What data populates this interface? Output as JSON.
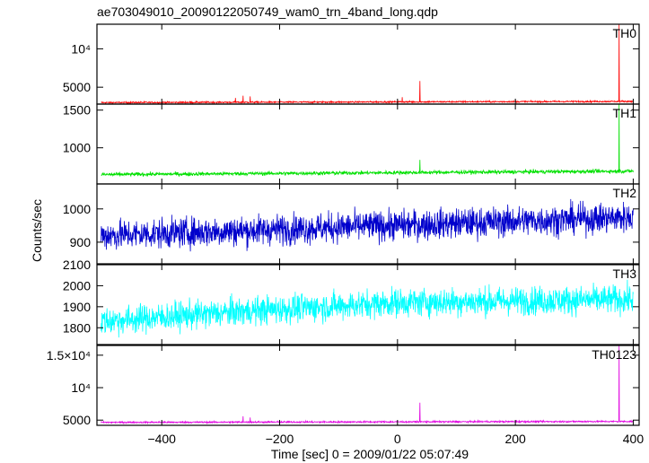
{
  "title": "ae703049010_20090122050749_wam0_trn_4band_long.qdp",
  "chart_data": {
    "type": "line",
    "title": "ae703049010_20090122050749_wam0_trn_4band_long.qdp",
    "xlabel": "Time [sec] 0 = 2009/01/22 05:07:49",
    "ylabel": "Counts/sec",
    "xlim": [
      -510,
      410
    ],
    "x_ticks": [
      -400,
      -200,
      0,
      200,
      400
    ],
    "x_tick_labels": [
      "−400",
      "−200",
      "0",
      "200",
      "400"
    ],
    "x_range_data": [
      -503,
      400
    ],
    "legend": "none",
    "grid": false,
    "panels": [
      {
        "name": "TH0",
        "color": "#ff0000",
        "ylim": [
          2800,
          13200
        ],
        "y_ticks": [
          5000,
          10000
        ],
        "y_tick_labels": [
          "5000",
          "10⁴"
        ],
        "baseline": [
          [
            -503,
            3000
          ],
          [
            400,
            3150
          ]
        ],
        "noise": 70,
        "spikes": [
          [
            -275,
            3600
          ],
          [
            -262,
            3900
          ],
          [
            -250,
            3800
          ],
          [
            8,
            3700
          ],
          [
            38,
            5800
          ],
          [
            376,
            13200
          ]
        ]
      },
      {
        "name": "TH1",
        "color": "#00e000",
        "ylim": [
          520,
          1580
        ],
        "y_ticks": [
          1000,
          1500
        ],
        "y_tick_labels": [
          "1000",
          "1500"
        ],
        "baseline": [
          [
            -503,
            645
          ],
          [
            400,
            690
          ]
        ],
        "noise": 18,
        "spikes": [
          [
            38,
            840
          ],
          [
            376,
            1580
          ]
        ]
      },
      {
        "name": "TH2",
        "color": "#0000cc",
        "ylim": [
          835,
          1075
        ],
        "y_ticks": [
          900,
          1000
        ],
        "y_tick_labels": [
          "900",
          "1000"
        ],
        "baseline": [
          [
            -503,
            920
          ],
          [
            400,
            975
          ]
        ],
        "noise": 32,
        "spikes": []
      },
      {
        "name": "TH3",
        "color": "#00ffff",
        "ylim": [
          1720,
          2100
        ],
        "y_ticks": [
          1800,
          1900,
          2000,
          2100
        ],
        "y_tick_labels": [
          "1800",
          "1900",
          "2000",
          "2100"
        ],
        "baseline": [
          [
            -503,
            1830
          ],
          [
            -250,
            1880
          ],
          [
            0,
            1920
          ],
          [
            400,
            1935
          ]
        ],
        "noise": 48,
        "spikes": []
      },
      {
        "name": "TH0123",
        "color": "#e000e0",
        "ylim": [
          4200,
          16500
        ],
        "y_ticks": [
          5000,
          10000,
          15000
        ],
        "y_tick_labels": [
          "5000",
          "10⁴",
          "1.5×10⁴"
        ],
        "baseline": [
          [
            -503,
            4650
          ],
          [
            400,
            4800
          ]
        ],
        "noise": 90,
        "spikes": [
          [
            -262,
            5600
          ],
          [
            -250,
            5400
          ],
          [
            38,
            7700
          ],
          [
            376,
            16500
          ]
        ]
      }
    ]
  }
}
